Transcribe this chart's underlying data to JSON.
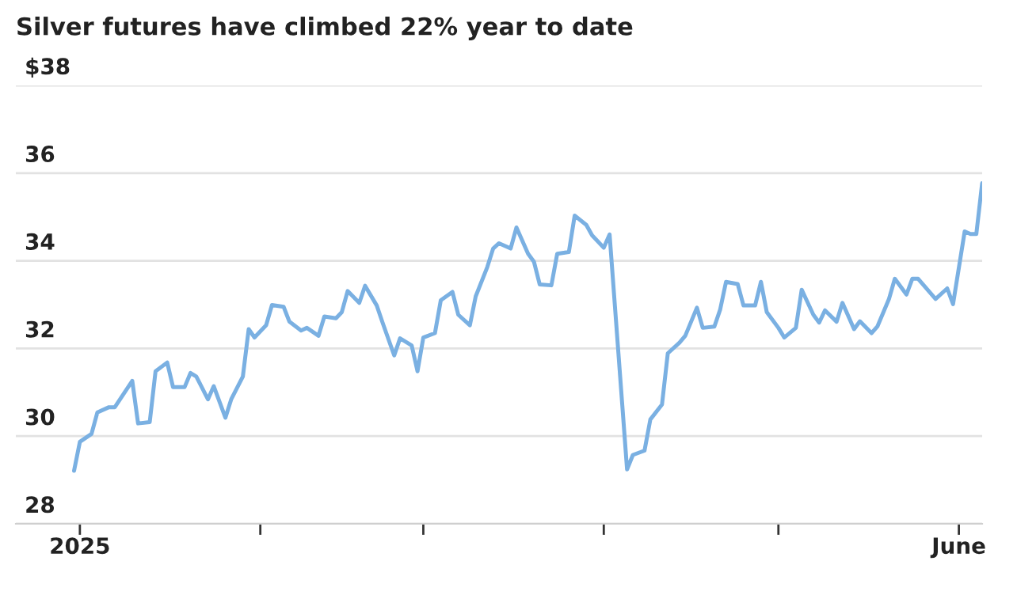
{
  "chart_data": {
    "type": "line",
    "title": "Silver futures have climbed 22% year to date",
    "x": [
      "2024-12-31",
      "2025-01-01",
      "2025-01-03",
      "2025-01-04",
      "2025-01-06",
      "2025-01-07",
      "2025-01-10",
      "2025-01-11",
      "2025-01-13",
      "2025-01-14",
      "2025-01-16",
      "2025-01-17",
      "2025-01-19",
      "2025-01-20",
      "2025-01-21",
      "2025-01-23",
      "2025-01-24",
      "2025-01-26",
      "2025-01-27",
      "2025-01-29",
      "2025-01-30",
      "2025-01-31",
      "2025-02-02",
      "2025-02-03",
      "2025-02-05",
      "2025-02-06",
      "2025-02-08",
      "2025-02-09",
      "2025-02-11",
      "2025-02-12",
      "2025-02-14",
      "2025-02-15",
      "2025-02-16",
      "2025-02-18",
      "2025-02-19",
      "2025-02-21",
      "2025-02-22",
      "2025-02-24",
      "2025-02-25",
      "2025-02-27",
      "2025-02-28",
      "2025-03-01",
      "2025-03-03",
      "2025-03-04",
      "2025-03-06",
      "2025-03-07",
      "2025-03-09",
      "2025-03-10",
      "2025-03-12",
      "2025-03-13",
      "2025-03-14",
      "2025-03-16",
      "2025-03-17",
      "2025-03-19",
      "2025-03-20",
      "2025-03-21",
      "2025-03-23",
      "2025-03-24",
      "2025-03-26",
      "2025-03-27",
      "2025-03-29",
      "2025-03-30",
      "2025-04-01",
      "2025-04-02",
      "2025-04-05",
      "2025-04-06",
      "2025-04-08",
      "2025-04-09",
      "2025-04-11",
      "2025-04-12",
      "2025-04-14",
      "2025-04-15",
      "2025-04-17",
      "2025-04-18",
      "2025-04-20",
      "2025-04-21",
      "2025-04-22",
      "2025-04-24",
      "2025-04-25",
      "2025-04-27",
      "2025-04-28",
      "2025-04-29",
      "2025-05-01",
      "2025-05-02",
      "2025-05-04",
      "2025-05-05",
      "2025-05-07",
      "2025-05-08",
      "2025-05-09",
      "2025-05-11",
      "2025-05-12",
      "2025-05-14",
      "2025-05-15",
      "2025-05-17",
      "2025-05-18",
      "2025-05-20",
      "2025-05-21",
      "2025-05-23",
      "2025-05-24",
      "2025-05-25",
      "2025-05-27",
      "2025-05-28",
      "2025-05-30",
      "2025-05-31",
      "2025-06-02",
      "2025-06-03",
      "2025-06-04",
      "2025-06-05"
    ],
    "series": [
      {
        "color": "#7ab0e2",
        "values": [
          29.21,
          29.87,
          30.05,
          30.54,
          30.66,
          30.66,
          31.26,
          30.29,
          30.32,
          31.48,
          31.68,
          31.12,
          31.12,
          31.44,
          31.36,
          30.84,
          31.14,
          30.42,
          30.84,
          31.36,
          32.44,
          32.25,
          32.53,
          32.99,
          32.95,
          32.61,
          32.41,
          32.47,
          32.29,
          32.73,
          32.69,
          32.83,
          33.31,
          33.04,
          33.43,
          32.98,
          32.59,
          31.84,
          32.23,
          32.07,
          31.48,
          32.25,
          32.35,
          33.1,
          33.29,
          32.77,
          32.53,
          33.19,
          33.86,
          34.28,
          34.4,
          34.28,
          34.76,
          34.16,
          33.98,
          33.46,
          33.44,
          34.16,
          34.2,
          35.03,
          34.82,
          34.58,
          34.3,
          34.6,
          29.24,
          29.57,
          29.67,
          30.38,
          30.72,
          31.89,
          32.13,
          32.29,
          32.93,
          32.47,
          32.5,
          32.89,
          33.52,
          33.47,
          32.98,
          32.98,
          33.52,
          32.83,
          32.47,
          32.25,
          32.47,
          33.34,
          32.77,
          32.59,
          32.87,
          32.61,
          33.04,
          32.44,
          32.62,
          32.35,
          32.5,
          33.13,
          33.59,
          33.23,
          33.59,
          33.59,
          33.28,
          33.13,
          33.37,
          33.01,
          34.67,
          34.61,
          34.61,
          35.77
        ]
      }
    ],
    "xlim": [
      "2024-12-21",
      "2025-06-05"
    ],
    "xticks": [
      {
        "value": "2025-01-01",
        "label": "2025"
      },
      {
        "value": "2025-02-01",
        "label": null
      },
      {
        "value": "2025-03-01",
        "label": null
      },
      {
        "value": "2025-04-01",
        "label": null
      },
      {
        "value": "2025-05-01",
        "label": null
      },
      {
        "value": "2025-06-01",
        "label": "June"
      }
    ],
    "ylim": [
      28,
      38
    ],
    "yticks": [
      {
        "value": 38,
        "label": "$38"
      },
      36,
      34,
      32,
      30,
      28
    ],
    "grid": "y",
    "line_style": "solid"
  }
}
